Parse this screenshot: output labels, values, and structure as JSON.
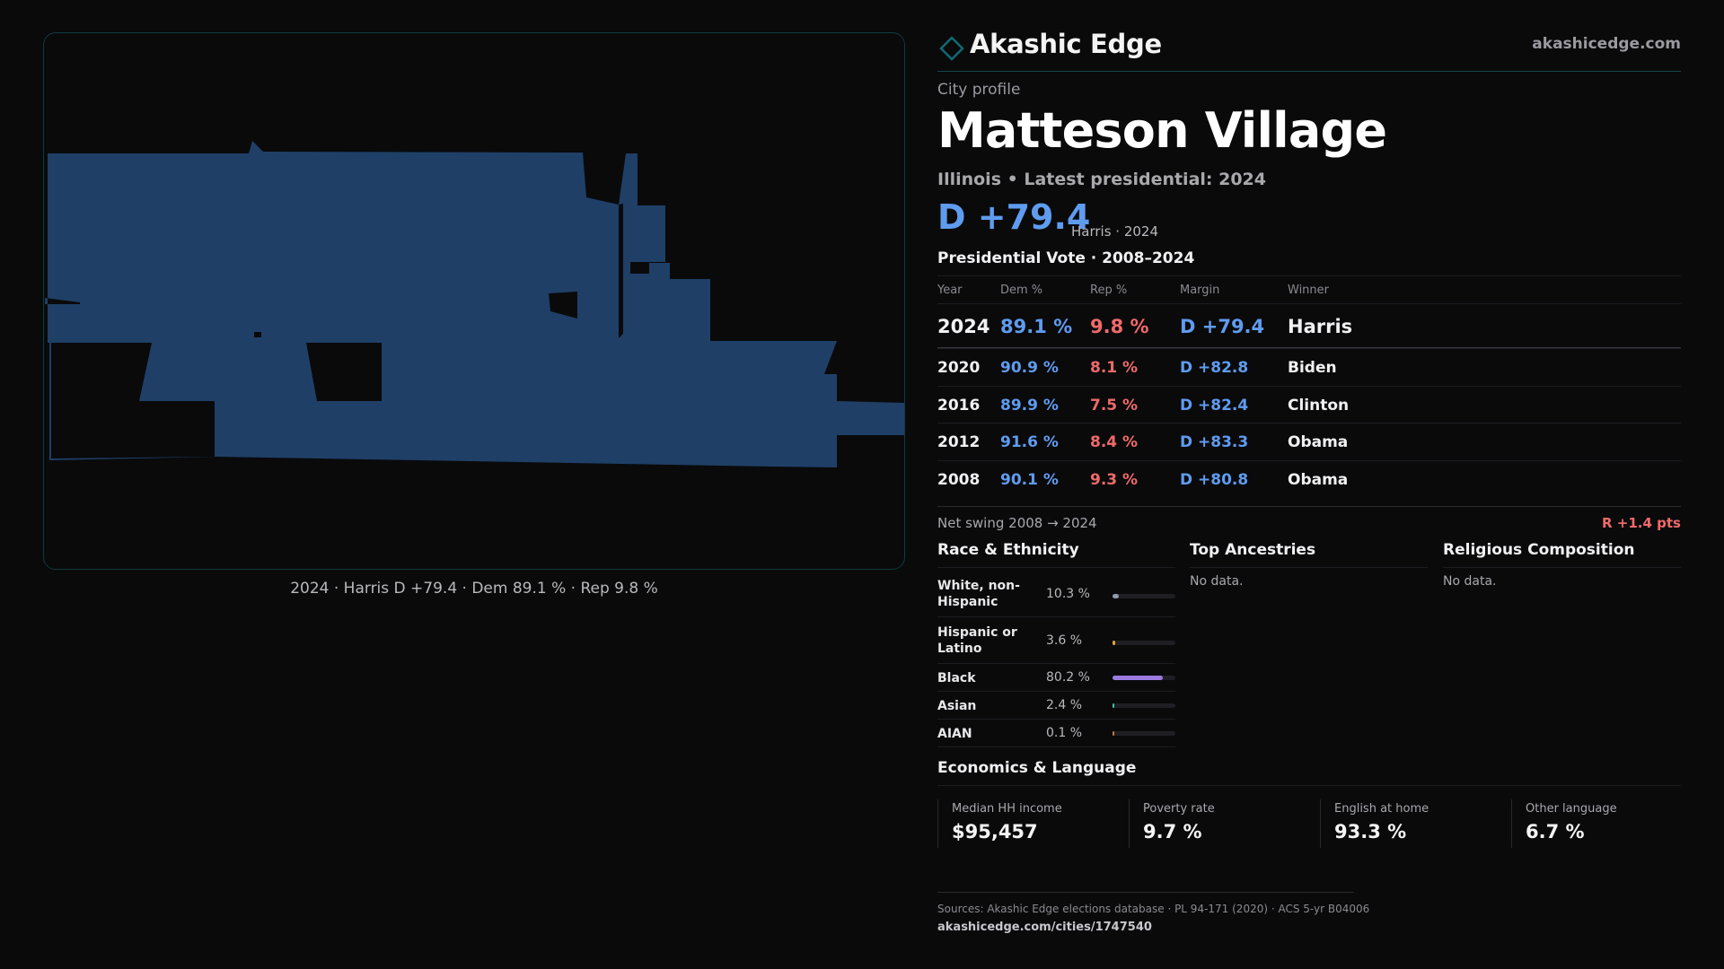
{
  "brand": {
    "name": "Akashic Edge",
    "url": "akashicedge.com",
    "accent": "#0f6a73"
  },
  "profile": {
    "kicker": "City profile",
    "city": "Matteson Village",
    "subline": "Illinois • Latest presidential: 2024",
    "margin_big": "D +79.4",
    "margin_note": "Harris · 2024"
  },
  "map": {
    "caption": "2024 · Harris D +79.4 · Dem 89.1 % · Rep 9.8 %",
    "fill_color": "#1f3f67",
    "border_color": "#0f3a40"
  },
  "elections": {
    "title": "Presidential Vote · 2008–2024",
    "headers": {
      "year": "Year",
      "dem": "Dem %",
      "rep": "Rep %",
      "margin": "Margin",
      "winner": "Winner"
    },
    "rows": [
      {
        "year": "2024",
        "dem": "89.1 %",
        "rep": "9.8 %",
        "margin": "D +79.4",
        "winner": "Harris"
      },
      {
        "year": "2020",
        "dem": "90.9 %",
        "rep": "8.1 %",
        "margin": "D +82.8",
        "winner": "Biden"
      },
      {
        "year": "2016",
        "dem": "89.9 %",
        "rep": "7.5 %",
        "margin": "D +82.4",
        "winner": "Clinton"
      },
      {
        "year": "2012",
        "dem": "91.6 %",
        "rep": "8.4 %",
        "margin": "D +83.3",
        "winner": "Obama"
      },
      {
        "year": "2008",
        "dem": "90.1 %",
        "rep": "9.3 %",
        "margin": "D +80.8",
        "winner": "Obama"
      }
    ],
    "swing_label": "Net swing 2008 → 2024",
    "swing_value": "R +1.4 pts",
    "dem_color": "#5f9cf0",
    "rep_color": "#f06a6a"
  },
  "race": {
    "title": "Race & Ethnicity",
    "items": [
      {
        "label": "White, non-Hispanic",
        "pct": "10.3 %",
        "value": 10.3,
        "color": "#8e9aac"
      },
      {
        "label": "Hispanic or Latino",
        "pct": "3.6 %",
        "value": 3.6,
        "color": "#e0a33a"
      },
      {
        "label": "Black",
        "pct": "80.2 %",
        "value": 80.2,
        "color": "#9b7be0"
      },
      {
        "label": "Asian",
        "pct": "2.4 %",
        "value": 2.4,
        "color": "#3fc2a0"
      },
      {
        "label": "AIAN",
        "pct": "0.1 %",
        "value": 0.1,
        "color": "#c07a4a"
      }
    ]
  },
  "ancestries": {
    "title": "Top Ancestries",
    "empty": "No data."
  },
  "religion": {
    "title": "Religious Composition",
    "empty": "No data."
  },
  "economics": {
    "title": "Economics & Language",
    "cells": [
      {
        "label": "Median HH income",
        "value": "$95,457"
      },
      {
        "label": "Poverty rate",
        "value": "9.7 %"
      },
      {
        "label": "English at home",
        "value": "93.3 %"
      },
      {
        "label": "Other language",
        "value": "6.7 %"
      }
    ]
  },
  "footer": {
    "sources": "Sources: Akashic Edge elections database · PL 94-171 (2020) · ACS 5-yr B04006",
    "url": "akashicedge.com/cities/1747540"
  }
}
